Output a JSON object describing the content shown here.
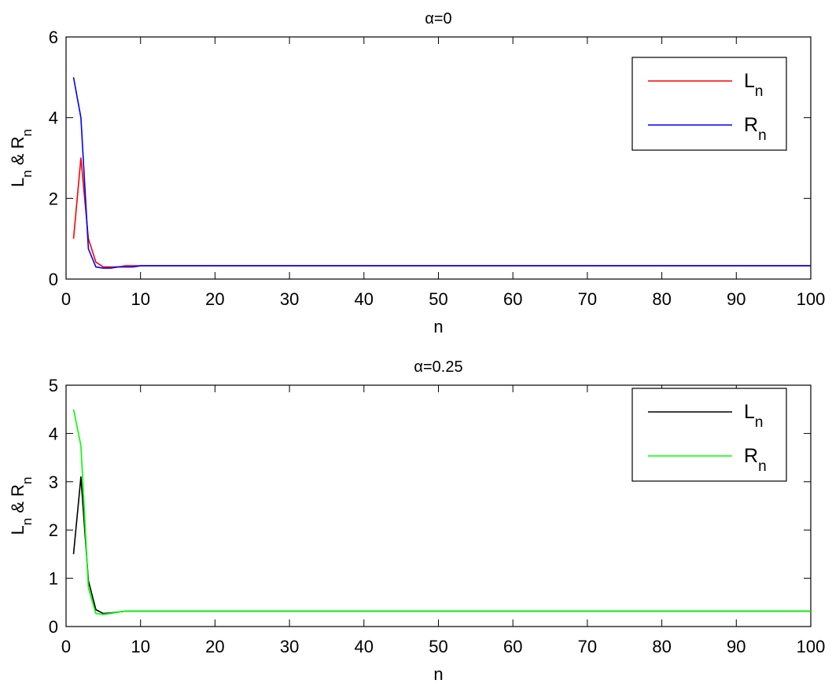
{
  "chart_data": [
    {
      "type": "line",
      "title": "α=0",
      "xlabel": "n",
      "ylabel": "L_n & R_n",
      "xlim": [
        0,
        100
      ],
      "ylim": [
        0,
        6
      ],
      "xticks": [
        0,
        10,
        20,
        30,
        40,
        50,
        60,
        70,
        80,
        90,
        100
      ],
      "yticks": [
        0,
        2,
        4,
        6
      ],
      "grid": false,
      "legend_position": "top-right",
      "series": [
        {
          "name": "L_n",
          "color": "#ff0000",
          "x": [
            1,
            2,
            3,
            4,
            5,
            6,
            7,
            8,
            9,
            10,
            100
          ],
          "y": [
            1.0,
            3.0,
            1.0,
            0.42,
            0.3,
            0.3,
            0.3,
            0.33,
            0.33,
            0.33,
            0.33
          ]
        },
        {
          "name": "R_n",
          "color": "#0000ff",
          "x": [
            1,
            2,
            3,
            4,
            5,
            6,
            7,
            8,
            9,
            10,
            100
          ],
          "y": [
            5.0,
            4.0,
            0.75,
            0.3,
            0.27,
            0.27,
            0.3,
            0.3,
            0.3,
            0.33,
            0.33
          ]
        }
      ]
    },
    {
      "type": "line",
      "title": "α=0.25",
      "xlabel": "n",
      "ylabel": "L_n & R_n",
      "xlim": [
        0,
        100
      ],
      "ylim": [
        0,
        5
      ],
      "xticks": [
        0,
        10,
        20,
        30,
        40,
        50,
        60,
        70,
        80,
        90,
        100
      ],
      "yticks": [
        0,
        1,
        2,
        3,
        4,
        5
      ],
      "grid": false,
      "legend_position": "top-right",
      "series": [
        {
          "name": "L_n",
          "color": "#000000",
          "x": [
            1,
            2,
            3,
            4,
            5,
            6,
            7,
            8,
            100
          ],
          "y": [
            1.5,
            3.1,
            0.95,
            0.35,
            0.27,
            0.28,
            0.3,
            0.32,
            0.32
          ]
        },
        {
          "name": "R_n",
          "color": "#00ff00",
          "x": [
            1,
            2,
            3,
            4,
            5,
            6,
            7,
            8,
            100
          ],
          "y": [
            4.5,
            3.75,
            0.8,
            0.27,
            0.25,
            0.27,
            0.3,
            0.32,
            0.32
          ]
        }
      ]
    }
  ]
}
